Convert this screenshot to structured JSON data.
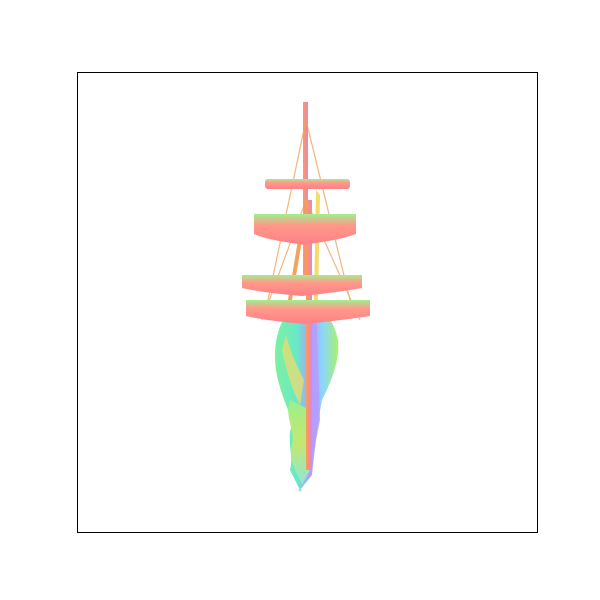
{
  "figure": {
    "frame_color": "#000000",
    "background_color": "#ffffff",
    "subject_icon": "ship-normal-map-render",
    "palette": {
      "sail_salmon": "#ff7f86",
      "sail_green": "#8cf08a",
      "hull_green": "#a6f36b",
      "hull_cyan": "#66e9c8",
      "hull_purple": "#b59bff",
      "mast_orange": "#f2a35c",
      "accent_yellow": "#f4dc6a"
    }
  }
}
